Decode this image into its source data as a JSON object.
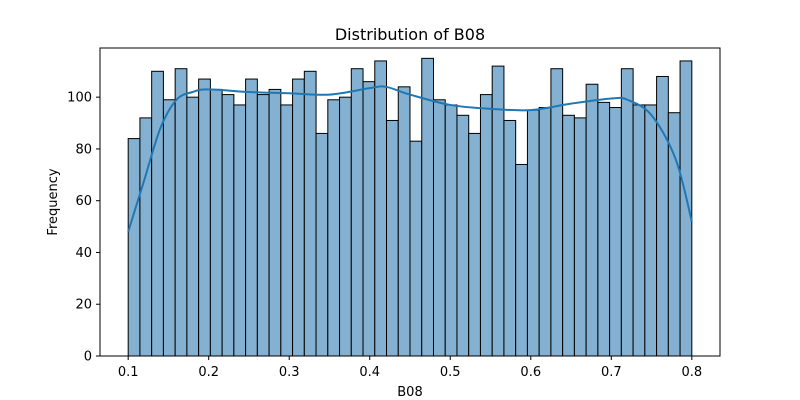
{
  "chart_data": {
    "type": "bar",
    "subtype": "histogram-with-kde",
    "title": "Distribution of B08",
    "xlabel": "B08",
    "ylabel": "Frequency",
    "xlim": [
      0.065,
      0.835
    ],
    "ylim": [
      0,
      119
    ],
    "x_ticks": [
      0.1,
      0.2,
      0.3,
      0.4,
      0.5,
      0.6,
      0.7,
      0.8
    ],
    "x_tick_labels": [
      "0.1",
      "0.2",
      "0.3",
      "0.4",
      "0.5",
      "0.6",
      "0.7",
      "0.8"
    ],
    "y_ticks": [
      0,
      20,
      40,
      60,
      80,
      100
    ],
    "y_tick_labels": [
      "0",
      "20",
      "40",
      "60",
      "80",
      "100"
    ],
    "bin_start": 0.1,
    "bin_end": 0.8,
    "counts": [
      84,
      92,
      110,
      99,
      111,
      100,
      107,
      103,
      101,
      97,
      107,
      101,
      103,
      97,
      107,
      110,
      86,
      99,
      100,
      111,
      106,
      114,
      91,
      104,
      83,
      115,
      99,
      97,
      93,
      86,
      101,
      112,
      91,
      74,
      95,
      96,
      111,
      93,
      92,
      105,
      98,
      96,
      111,
      97,
      97,
      108,
      94,
      114
    ],
    "kde": {
      "x": [
        0.1,
        0.12,
        0.14,
        0.16,
        0.18,
        0.2,
        0.25,
        0.3,
        0.35,
        0.4,
        0.42,
        0.45,
        0.5,
        0.55,
        0.6,
        0.65,
        0.7,
        0.72,
        0.75,
        0.78,
        0.8
      ],
      "y": [
        48,
        68,
        88,
        99,
        102,
        103,
        102,
        101.5,
        101,
        103.5,
        104,
        101,
        97,
        95.5,
        95,
        97.5,
        99.5,
        99,
        93,
        76,
        52
      ]
    },
    "colors": {
      "bar_fill": "#84b1d2",
      "bar_edge": "#000000",
      "kde_line": "#1f77b4"
    },
    "grid": false,
    "legend": "none"
  }
}
